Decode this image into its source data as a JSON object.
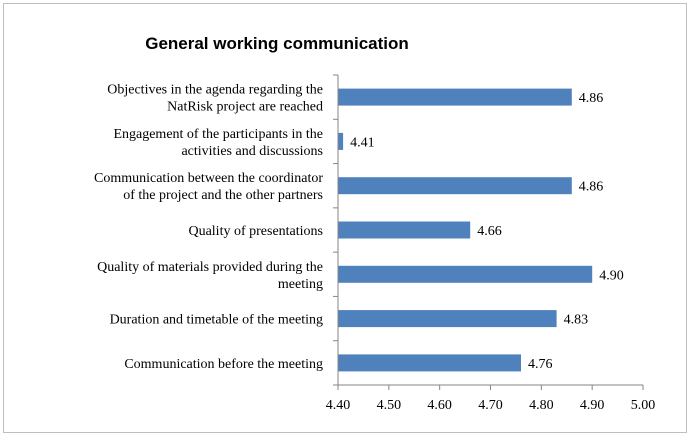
{
  "chart_data": {
    "type": "bar",
    "orientation": "horizontal",
    "title": "General working communication",
    "categories": [
      [
        "Objectives in the agenda regarding the",
        "NatRisk project are reached"
      ],
      [
        "Engagement of the participants in the",
        "activities and discussions"
      ],
      [
        "Communication between the coordinator",
        "of the project and the other partners"
      ],
      [
        "Quality of presentations"
      ],
      [
        "Quality of materials provided during the",
        "meeting"
      ],
      [
        "Duration and timetable of the meeting"
      ],
      [
        "Communication before the meeting"
      ]
    ],
    "values": [
      4.86,
      4.41,
      4.86,
      4.66,
      4.9,
      4.83,
      4.76
    ],
    "data_labels": [
      "4.86",
      "4.41",
      "4.86",
      "4.66",
      "4.90",
      "4.83",
      "4.76"
    ],
    "xlim": [
      4.4,
      5.0
    ],
    "xticks": [
      "4.40",
      "4.50",
      "4.60",
      "4.70",
      "4.80",
      "4.90",
      "5.00"
    ],
    "xtick_values": [
      4.4,
      4.5,
      4.6,
      4.7,
      4.8,
      4.9,
      5.0
    ],
    "grid": false,
    "legend": "none",
    "bar_color": "#4f81bd",
    "axis_color": "#868686"
  }
}
